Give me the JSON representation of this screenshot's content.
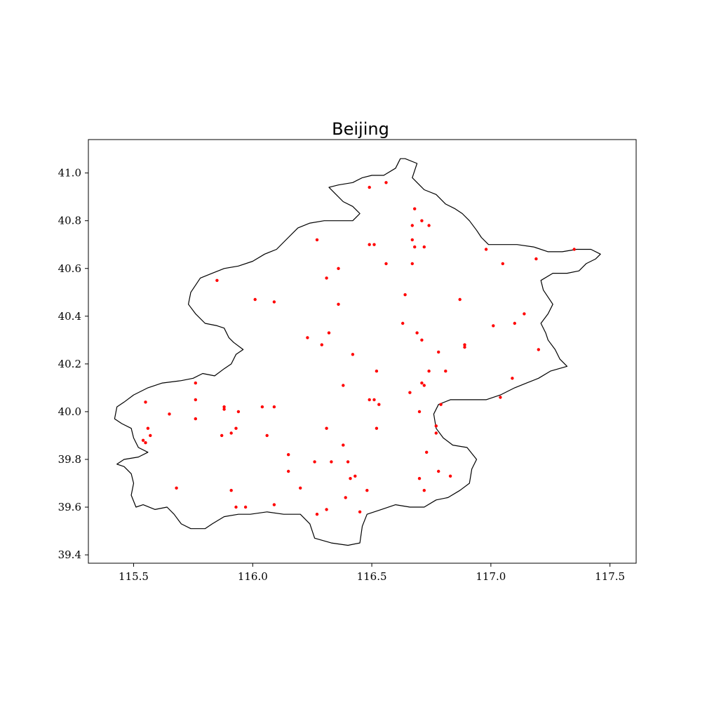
{
  "chart_data": {
    "type": "scatter",
    "title": "Beijing",
    "xlabel": "",
    "ylabel": "",
    "xlim": [
      115.31,
      117.61
    ],
    "ylim": [
      39.365,
      41.14
    ],
    "x_ticks": [
      115.5,
      116.0,
      116.5,
      117.0,
      117.5
    ],
    "x_tick_labels": [
      "115.5",
      "116.0",
      "116.5",
      "117.0",
      "117.5"
    ],
    "y_ticks": [
      39.4,
      39.6,
      39.8,
      40.0,
      40.2,
      40.4,
      40.6,
      40.8,
      41.0
    ],
    "y_tick_labels": [
      "39.4",
      "39.6",
      "39.8",
      "40.0",
      "40.2",
      "40.4",
      "40.6",
      "40.8",
      "41.0"
    ],
    "grid": false,
    "marker_color": "#ff0000",
    "boundary_color": "#000000",
    "boundary": [
      [
        116.64,
        41.06
      ],
      [
        116.69,
        41.04
      ],
      [
        116.68,
        41.01
      ],
      [
        116.67,
        40.98
      ],
      [
        116.7,
        40.95
      ],
      [
        116.72,
        40.93
      ],
      [
        116.77,
        40.91
      ],
      [
        116.81,
        40.87
      ],
      [
        116.85,
        40.85
      ],
      [
        116.88,
        40.83
      ],
      [
        116.91,
        40.8
      ],
      [
        116.94,
        40.76
      ],
      [
        116.96,
        40.73
      ],
      [
        116.99,
        40.7
      ],
      [
        117.05,
        40.7
      ],
      [
        117.11,
        40.7
      ],
      [
        117.18,
        40.69
      ],
      [
        117.24,
        40.67
      ],
      [
        117.3,
        40.67
      ],
      [
        117.36,
        40.68
      ],
      [
        117.42,
        40.68
      ],
      [
        117.46,
        40.66
      ],
      [
        117.44,
        40.64
      ],
      [
        117.4,
        40.62
      ],
      [
        117.37,
        40.59
      ],
      [
        117.32,
        40.58
      ],
      [
        117.26,
        40.58
      ],
      [
        117.21,
        40.55
      ],
      [
        117.22,
        40.51
      ],
      [
        117.26,
        40.45
      ],
      [
        117.24,
        40.41
      ],
      [
        117.21,
        40.37
      ],
      [
        117.23,
        40.33
      ],
      [
        117.24,
        40.3
      ],
      [
        117.27,
        40.26
      ],
      [
        117.29,
        40.22
      ],
      [
        117.32,
        40.19
      ],
      [
        117.25,
        40.17
      ],
      [
        117.2,
        40.14
      ],
      [
        117.15,
        40.12
      ],
      [
        117.1,
        40.1
      ],
      [
        117.04,
        40.07
      ],
      [
        116.98,
        40.05
      ],
      [
        116.9,
        40.05
      ],
      [
        116.83,
        40.05
      ],
      [
        116.78,
        40.03
      ],
      [
        116.76,
        39.99
      ],
      [
        116.77,
        39.93
      ],
      [
        116.8,
        39.89
      ],
      [
        116.84,
        39.86
      ],
      [
        116.9,
        39.85
      ],
      [
        116.94,
        39.8
      ],
      [
        116.92,
        39.76
      ],
      [
        116.91,
        39.7
      ],
      [
        116.87,
        39.67
      ],
      [
        116.82,
        39.64
      ],
      [
        116.77,
        39.63
      ],
      [
        116.72,
        39.6
      ],
      [
        116.66,
        39.6
      ],
      [
        116.6,
        39.61
      ],
      [
        116.54,
        39.59
      ],
      [
        116.48,
        39.57
      ],
      [
        116.46,
        39.52
      ],
      [
        116.45,
        39.45
      ],
      [
        116.4,
        39.44
      ],
      [
        116.33,
        39.45
      ],
      [
        116.26,
        39.47
      ],
      [
        116.24,
        39.53
      ],
      [
        116.2,
        39.57
      ],
      [
        116.13,
        39.57
      ],
      [
        116.06,
        39.58
      ],
      [
        115.99,
        39.57
      ],
      [
        115.94,
        39.57
      ],
      [
        115.88,
        39.56
      ],
      [
        115.83,
        39.53
      ],
      [
        115.8,
        39.51
      ],
      [
        115.74,
        39.51
      ],
      [
        115.7,
        39.53
      ],
      [
        115.67,
        39.57
      ],
      [
        115.64,
        39.6
      ],
      [
        115.59,
        39.59
      ],
      [
        115.54,
        39.61
      ],
      [
        115.51,
        39.6
      ],
      [
        115.49,
        39.65
      ],
      [
        115.5,
        39.7
      ],
      [
        115.49,
        39.74
      ],
      [
        115.46,
        39.77
      ],
      [
        115.43,
        39.78
      ],
      [
        115.46,
        39.8
      ],
      [
        115.52,
        39.81
      ],
      [
        115.56,
        39.83
      ],
      [
        115.52,
        39.85
      ],
      [
        115.5,
        39.89
      ],
      [
        115.49,
        39.93
      ],
      [
        115.45,
        39.95
      ],
      [
        115.42,
        39.97
      ],
      [
        115.43,
        40.02
      ],
      [
        115.46,
        40.04
      ],
      [
        115.5,
        40.07
      ],
      [
        115.56,
        40.1
      ],
      [
        115.62,
        40.12
      ],
      [
        115.7,
        40.13
      ],
      [
        115.75,
        40.14
      ],
      [
        115.79,
        40.16
      ],
      [
        115.84,
        40.15
      ],
      [
        115.88,
        40.18
      ],
      [
        115.91,
        40.2
      ],
      [
        115.93,
        40.24
      ],
      [
        115.96,
        40.26
      ],
      [
        115.92,
        40.29
      ],
      [
        115.9,
        40.31
      ],
      [
        115.88,
        40.35
      ],
      [
        115.85,
        40.36
      ],
      [
        115.8,
        40.37
      ],
      [
        115.76,
        40.41
      ],
      [
        115.73,
        40.45
      ],
      [
        115.74,
        40.5
      ],
      [
        115.78,
        40.56
      ],
      [
        115.83,
        40.58
      ],
      [
        115.88,
        40.6
      ],
      [
        115.94,
        40.61
      ],
      [
        116.0,
        40.63
      ],
      [
        116.05,
        40.66
      ],
      [
        116.1,
        40.68
      ],
      [
        116.15,
        40.73
      ],
      [
        116.19,
        40.77
      ],
      [
        116.24,
        40.79
      ],
      [
        116.3,
        40.8
      ],
      [
        116.36,
        40.8
      ],
      [
        116.42,
        40.8
      ],
      [
        116.45,
        40.83
      ],
      [
        116.42,
        40.86
      ],
      [
        116.38,
        40.88
      ],
      [
        116.34,
        40.92
      ],
      [
        116.32,
        40.94
      ],
      [
        116.36,
        40.95
      ],
      [
        116.42,
        40.96
      ],
      [
        116.46,
        40.98
      ],
      [
        116.5,
        40.99
      ],
      [
        116.55,
        40.99
      ],
      [
        116.6,
        41.02
      ],
      [
        116.62,
        41.06
      ],
      [
        116.64,
        41.06
      ]
    ],
    "points": [
      [
        116.56,
        40.96
      ],
      [
        116.49,
        40.94
      ],
      [
        116.68,
        40.85
      ],
      [
        116.71,
        40.8
      ],
      [
        116.67,
        40.78
      ],
      [
        116.74,
        40.78
      ],
      [
        116.27,
        40.72
      ],
      [
        116.67,
        40.72
      ],
      [
        116.49,
        40.7
      ],
      [
        116.51,
        40.7
      ],
      [
        116.68,
        40.69
      ],
      [
        116.72,
        40.69
      ],
      [
        116.98,
        40.68
      ],
      [
        117.35,
        40.68
      ],
      [
        117.19,
        40.64
      ],
      [
        117.05,
        40.62
      ],
      [
        116.56,
        40.62
      ],
      [
        116.67,
        40.62
      ],
      [
        116.36,
        40.6
      ],
      [
        115.85,
        40.55
      ],
      [
        116.31,
        40.56
      ],
      [
        116.64,
        40.49
      ],
      [
        116.87,
        40.47
      ],
      [
        116.01,
        40.47
      ],
      [
        116.09,
        40.46
      ],
      [
        116.36,
        40.45
      ],
      [
        117.14,
        40.41
      ],
      [
        117.1,
        40.37
      ],
      [
        116.63,
        40.37
      ],
      [
        117.01,
        40.36
      ],
      [
        116.32,
        40.33
      ],
      [
        116.69,
        40.33
      ],
      [
        116.71,
        40.3
      ],
      [
        116.23,
        40.31
      ],
      [
        116.29,
        40.28
      ],
      [
        116.89,
        40.28
      ],
      [
        116.89,
        40.27
      ],
      [
        117.2,
        40.26
      ],
      [
        116.78,
        40.25
      ],
      [
        116.42,
        40.24
      ],
      [
        116.74,
        40.17
      ],
      [
        116.81,
        40.17
      ],
      [
        116.52,
        40.17
      ],
      [
        117.09,
        40.14
      ],
      [
        115.76,
        40.12
      ],
      [
        116.71,
        40.12
      ],
      [
        116.72,
        40.11
      ],
      [
        116.38,
        40.11
      ],
      [
        116.66,
        40.08
      ],
      [
        117.04,
        40.06
      ],
      [
        116.51,
        40.05
      ],
      [
        116.49,
        40.05
      ],
      [
        116.53,
        40.03
      ],
      [
        115.76,
        40.05
      ],
      [
        115.55,
        40.04
      ],
      [
        116.79,
        40.03
      ],
      [
        115.88,
        40.02
      ],
      [
        115.88,
        40.01
      ],
      [
        116.04,
        40.02
      ],
      [
        116.09,
        40.02
      ],
      [
        115.94,
        40.0
      ],
      [
        115.65,
        39.99
      ],
      [
        116.7,
        40.0
      ],
      [
        115.76,
        39.97
      ],
      [
        116.77,
        39.94
      ],
      [
        115.56,
        39.93
      ],
      [
        116.31,
        39.93
      ],
      [
        116.52,
        39.93
      ],
      [
        115.93,
        39.93
      ],
      [
        115.91,
        39.91
      ],
      [
        115.57,
        39.9
      ],
      [
        115.87,
        39.9
      ],
      [
        116.77,
        39.91
      ],
      [
        116.06,
        39.9
      ],
      [
        115.54,
        39.88
      ],
      [
        115.55,
        39.87
      ],
      [
        116.38,
        39.86
      ],
      [
        116.15,
        39.82
      ],
      [
        116.73,
        39.83
      ],
      [
        116.26,
        39.79
      ],
      [
        116.33,
        39.79
      ],
      [
        116.4,
        39.79
      ],
      [
        116.15,
        39.75
      ],
      [
        116.78,
        39.75
      ],
      [
        116.83,
        39.73
      ],
      [
        116.43,
        39.73
      ],
      [
        116.41,
        39.72
      ],
      [
        116.7,
        39.72
      ],
      [
        115.68,
        39.68
      ],
      [
        116.2,
        39.68
      ],
      [
        116.48,
        39.67
      ],
      [
        115.91,
        39.67
      ],
      [
        116.72,
        39.67
      ],
      [
        116.39,
        39.64
      ],
      [
        116.09,
        39.61
      ],
      [
        115.93,
        39.6
      ],
      [
        115.97,
        39.6
      ],
      [
        116.31,
        39.59
      ],
      [
        116.45,
        39.58
      ],
      [
        116.27,
        39.57
      ]
    ]
  }
}
